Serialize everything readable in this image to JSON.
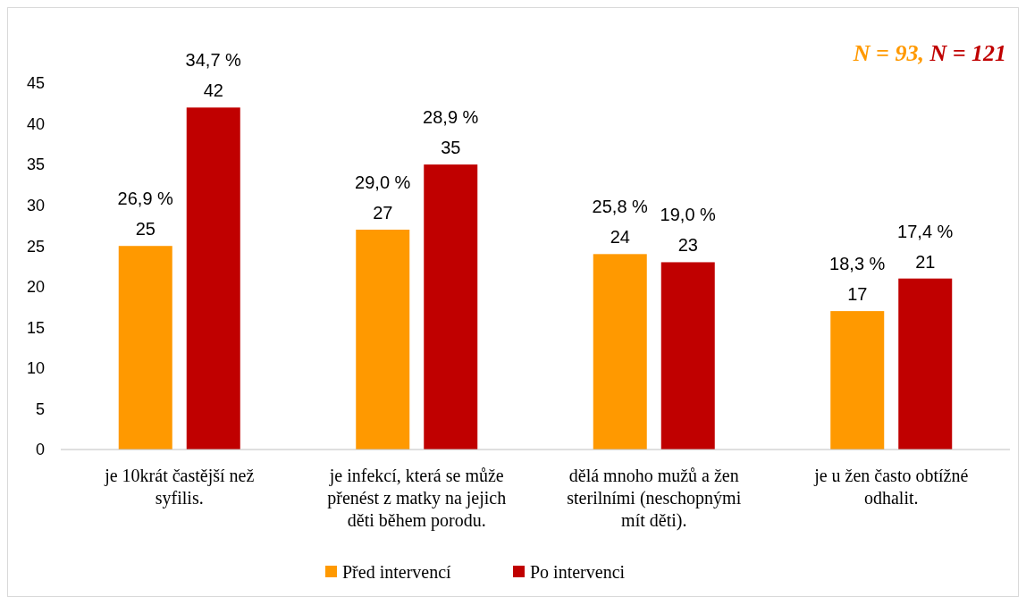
{
  "chart_data": {
    "type": "bar",
    "categories": [
      "je 10krát častější než syfilis.",
      "je infekcí, která se může přenést z matky na jejich děti během porodu.",
      "dělá mnoho mužů a žen sterilními (neschopnými mít děti).",
      "je u žen často obtížné odhalit."
    ],
    "series": [
      {
        "name": "Před intervencí",
        "color": "#ff9900",
        "values": [
          25,
          27,
          24,
          17
        ],
        "value_labels": [
          "26,9 %\n25",
          "29,0 %\n27",
          "25,8 %\n24",
          "18,3 %\n17"
        ]
      },
      {
        "name": "Po intervenci",
        "color": "#c00000",
        "values": [
          42,
          35,
          23,
          21
        ],
        "value_labels": [
          "34,7 %\n42",
          "28,9 %\n35",
          "19,0 %\n23",
          "17,4 %\n21"
        ]
      }
    ],
    "ylim": [
      0,
      45
    ],
    "yticks": [
      0,
      5,
      10,
      15,
      20,
      25,
      30,
      35,
      40,
      45
    ],
    "legend": "bottom",
    "annotations": [
      "N = 93,",
      "N = 121"
    ]
  }
}
